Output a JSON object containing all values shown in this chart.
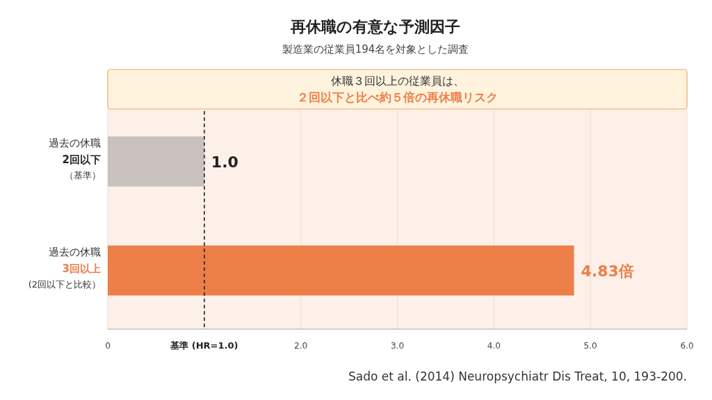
{
  "chart_data": {
    "type": "bar",
    "orientation": "horizontal",
    "title": "再休職の有意な予測因子",
    "subtitle": "製造業の従業員194名を対象とした調査",
    "categories": [
      "過去の休職\n2回以下（基準）",
      "過去の休職\n3回以上(2回以下と比較）"
    ],
    "values": [
      1.0,
      4.83
    ],
    "colors": [
      "#c9c1be",
      "#ec7f48"
    ],
    "value_labels": [
      "1.0",
      "4.83倍"
    ],
    "xlim": [
      0,
      6
    ],
    "xticks": [
      0,
      {
        "value": 1,
        "label": "基準 (HR=1.0)"
      },
      {
        "value": 2,
        "label": "2.0"
      },
      {
        "value": 3,
        "label": "3.0"
      },
      {
        "value": 4,
        "label": "4.0"
      },
      {
        "value": 5,
        "label": "5.0"
      },
      {
        "value": 6,
        "label": "6.0"
      }
    ],
    "grid": "x",
    "ref_lines": [
      {
        "axis": "x",
        "value": 1,
        "color": "#222222",
        "line_style": "dashed"
      }
    ],
    "annotations": [
      "休職３回以上の従業員は、",
      "２回以下と比べ約５倍の再休職リスク",
      "Sado et al. (2014) Neuropsychiatr Dis Treat, 10, 193-200."
    ]
  }
}
